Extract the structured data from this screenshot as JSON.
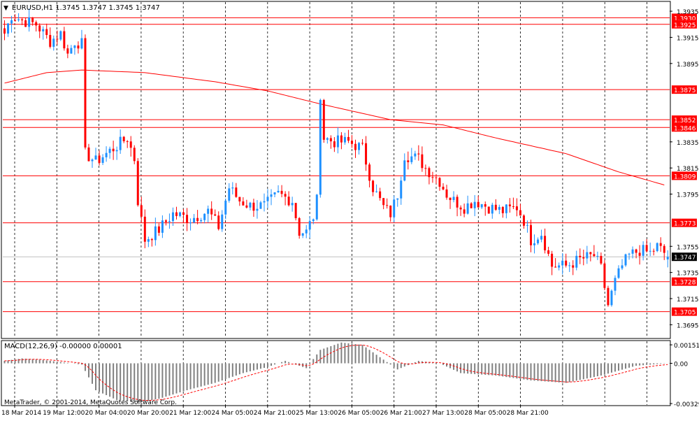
{
  "main_header": {
    "dropdown_glyph": "▼",
    "text": "EURUSD,H1  1.3745 1.3747 1.3745 1.3747"
  },
  "macd_header": {
    "text": "MACD(12,26,9) -0.00000 0.00001"
  },
  "copyright": "MetaTrader, © 2001-2014, MetaQuotes Software Corp.",
  "colors": {
    "background": "#ffffff",
    "frame": "#000000",
    "grid": "#000000",
    "bull_candle": "#1e90ff",
    "bear_candle": "#ff0000",
    "level_line": "#ff0000",
    "level_label_bg": "#ff0000",
    "level_label_text": "#ffffff",
    "current_price_bg": "#000000",
    "current_price_line": "#c0c0c0",
    "moving_average": "#ff0000",
    "macd_histogram": "#808080",
    "macd_signal": "#ff0000"
  },
  "chart_data": [
    {
      "type": "candlestick",
      "symbol": "EURUSD",
      "timeframe": "H1",
      "last_quote": {
        "open": 1.3745,
        "high": 1.3747,
        "low": 1.3745,
        "close": 1.3747
      },
      "ylim": [
        1.3685,
        1.3942
      ],
      "y_ticks": [
        1.3935,
        1.3915,
        1.3895,
        1.3835,
        1.3815,
        1.3795,
        1.3755,
        1.3735,
        1.3715,
        1.3695
      ],
      "x_tick_labels": [
        "18 Mar 2014",
        "19 Mar 12:00",
        "20 Mar 04:00",
        "20 Mar 20:00",
        "21 Mar 12:00",
        "24 Mar 05:00",
        "24 Mar 21:00",
        "25 Mar 13:00",
        "26 Mar 05:00",
        "26 Mar 21:00",
        "27 Mar 13:00",
        "28 Mar 05:00",
        "28 Mar 21:00"
      ],
      "horizontal_levels": [
        1.393,
        1.3925,
        1.3875,
        1.3852,
        1.3846,
        1.3809,
        1.3773,
        1.3728,
        1.3705
      ],
      "current_price": 1.3747,
      "grid": true,
      "anchors": [
        [
          0,
          1.3918
        ],
        [
          2,
          1.3932
        ],
        [
          5,
          1.3928
        ],
        [
          9,
          1.3925
        ],
        [
          13,
          1.3912
        ],
        [
          16,
          1.3918
        ],
        [
          18,
          1.3902
        ],
        [
          20,
          1.3912
        ],
        [
          22,
          1.391
        ],
        [
          23,
          1.3826
        ],
        [
          26,
          1.382
        ],
        [
          30,
          1.3828
        ],
        [
          35,
          1.3838
        ],
        [
          37,
          1.3822
        ],
        [
          38,
          1.379
        ],
        [
          40,
          1.376
        ],
        [
          44,
          1.3768
        ],
        [
          48,
          1.378
        ],
        [
          53,
          1.3776
        ],
        [
          58,
          1.3782
        ],
        [
          61,
          1.377
        ],
        [
          64,
          1.38
        ],
        [
          67,
          1.379
        ],
        [
          70,
          1.3786
        ],
        [
          74,
          1.3786
        ],
        [
          78,
          1.3795
        ],
        [
          82,
          1.379
        ],
        [
          84,
          1.3766
        ],
        [
          86,
          1.3766
        ],
        [
          88,
          1.3778
        ],
        [
          89,
          1.379
        ],
        [
          90,
          1.3872
        ],
        [
          91,
          1.3838
        ],
        [
          94,
          1.3835
        ],
        [
          98,
          1.3835
        ],
        [
          102,
          1.383
        ],
        [
          105,
          1.38
        ],
        [
          108,
          1.3785
        ],
        [
          110,
          1.378
        ],
        [
          112,
          1.3795
        ],
        [
          114,
          1.3825
        ],
        [
          118,
          1.3822
        ],
        [
          120,
          1.3815
        ],
        [
          124,
          1.3805
        ],
        [
          126,
          1.3795
        ],
        [
          128,
          1.379
        ],
        [
          131,
          1.3785
        ],
        [
          134,
          1.379
        ],
        [
          138,
          1.3785
        ],
        [
          142,
          1.3782
        ],
        [
          146,
          1.3785
        ],
        [
          148,
          1.3775
        ],
        [
          150,
          1.376
        ],
        [
          153,
          1.3765
        ],
        [
          156,
          1.374
        ],
        [
          160,
          1.374
        ],
        [
          164,
          1.3745
        ],
        [
          168,
          1.3748
        ],
        [
          170,
          1.3738
        ],
        [
          172,
          1.371
        ],
        [
          174,
          1.3728
        ],
        [
          176,
          1.374
        ],
        [
          178,
          1.3748
        ],
        [
          181,
          1.3752
        ],
        [
          184,
          1.375
        ],
        [
          186,
          1.3755
        ],
        [
          188,
          1.375
        ],
        [
          189,
          1.3747
        ]
      ],
      "moving_average": [
        [
          0,
          1.388
        ],
        [
          12,
          1.3888
        ],
        [
          22,
          1.389
        ],
        [
          40,
          1.3888
        ],
        [
          60,
          1.3881
        ],
        [
          75,
          1.3874
        ],
        [
          90,
          1.3864
        ],
        [
          110,
          1.3852
        ],
        [
          125,
          1.3848
        ],
        [
          140,
          1.3838
        ],
        [
          160,
          1.3826
        ],
        [
          175,
          1.3812
        ],
        [
          188,
          1.3802
        ]
      ]
    },
    {
      "type": "histogram",
      "name": "MACD(12,26,9)",
      "main_value": -0.0,
      "signal_value": 1e-05,
      "ylim": [
        -0.0034,
        0.0018
      ],
      "y_tick_labels": [
        "0.00151",
        "0.00",
        "-0.00329"
      ],
      "y_tick_values": [
        0.00151,
        0.0,
        -0.00329
      ],
      "anchors": [
        [
          0,
          0.0002
        ],
        [
          5,
          0.0004
        ],
        [
          10,
          0.0003
        ],
        [
          16,
          0.0001
        ],
        [
          22,
          -0.0001
        ],
        [
          26,
          -0.0022
        ],
        [
          32,
          -0.003
        ],
        [
          38,
          -0.0032
        ],
        [
          44,
          -0.0029
        ],
        [
          52,
          -0.0022
        ],
        [
          60,
          -0.0016
        ],
        [
          68,
          -0.0008
        ],
        [
          75,
          -0.0003
        ],
        [
          80,
          0.0002
        ],
        [
          86,
          -0.0004
        ],
        [
          90,
          0.0011
        ],
        [
          96,
          0.0017
        ],
        [
          102,
          0.0015
        ],
        [
          108,
          0.0003
        ],
        [
          112,
          -0.0005
        ],
        [
          118,
          0.0002
        ],
        [
          124,
          0.0
        ],
        [
          130,
          -0.0008
        ],
        [
          140,
          -0.001
        ],
        [
          150,
          -0.0014
        ],
        [
          160,
          -0.0016
        ],
        [
          170,
          -0.001
        ],
        [
          180,
          -0.0002
        ],
        [
          189,
          0.0
        ]
      ]
    }
  ]
}
